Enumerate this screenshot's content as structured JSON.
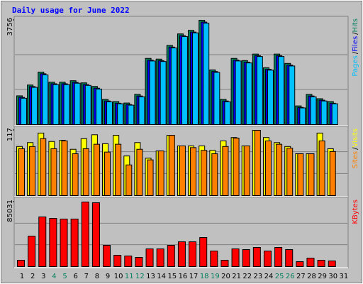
{
  "title": "Daily usage for June 2022",
  "legend_separator": "/",
  "x_axis": {
    "categories": [
      "1",
      "2",
      "3",
      "4",
      "5",
      "6",
      "7",
      "8",
      "9",
      "10",
      "11",
      "12",
      "13",
      "14",
      "15",
      "16",
      "17",
      "18",
      "19",
      "20",
      "21",
      "22",
      "23",
      "24",
      "25",
      "26",
      "27",
      "28",
      "29",
      "30",
      "31"
    ],
    "label_colors": [
      "#000000",
      "#000000",
      "#000000",
      "#00805c",
      "#00805c",
      "#000000",
      "#000000",
      "#000000",
      "#000000",
      "#000000",
      "#00805c",
      "#00805c",
      "#000000",
      "#000000",
      "#000000",
      "#000000",
      "#000000",
      "#00805c",
      "#00805c",
      "#000000",
      "#000000",
      "#000000",
      "#000000",
      "#000000",
      "#00805c",
      "#00805c",
      "#000000",
      "#000000",
      "#000000",
      "#000000",
      "#000000"
    ]
  },
  "chart_data": [
    {
      "type": "bar",
      "ylim": [
        0,
        3756
      ],
      "yticks": [
        3756
      ],
      "series": [
        {
          "name": "Hits",
          "color": "#00805c",
          "values": [
            1036,
            1425,
            1891,
            1528,
            1528,
            1580,
            1502,
            1373,
            907,
            829,
            777,
            1088,
            2383,
            2357,
            2849,
            3264,
            3393,
            3756,
            1969,
            907,
            2383,
            2305,
            2538,
            2046,
            2538,
            2202,
            673,
            1088,
            932,
            829,
            null
          ]
        },
        {
          "name": "Files",
          "color": "#0000ff",
          "values": [
            980,
            1370,
            1830,
            1470,
            1470,
            1520,
            1440,
            1310,
            850,
            770,
            720,
            1030,
            2320,
            2300,
            2790,
            3200,
            3330,
            3690,
            1910,
            850,
            2320,
            2250,
            2480,
            1990,
            2480,
            2140,
            620,
            1030,
            880,
            770,
            null
          ]
        },
        {
          "name": "Pages",
          "color": "#00c0ff",
          "values": [
            950,
            1340,
            1790,
            1440,
            1440,
            1490,
            1410,
            1280,
            820,
            750,
            700,
            1000,
            2290,
            2270,
            2760,
            3170,
            3300,
            3650,
            1880,
            820,
            2290,
            2220,
            2450,
            1960,
            2450,
            2110,
            600,
            1000,
            850,
            750,
            null
          ]
        }
      ]
    },
    {
      "type": "bar",
      "ylim": [
        0,
        117
      ],
      "yticks": [
        117
      ],
      "series": [
        {
          "name": "Visits",
          "color": "#ffff00",
          "values": [
            88,
            95,
            112,
            97,
            99,
            83,
            102,
            109,
            93,
            108,
            71,
            95,
            67,
            80,
            108,
            89,
            89,
            89,
            81,
            98,
            104,
            89,
            117,
            104,
            95,
            88,
            75,
            75,
            112,
            84,
            null
          ]
        },
        {
          "name": "Sites",
          "color": "#ff8000",
          "values": [
            84,
            88,
            102,
            84,
            98,
            75,
            84,
            92,
            78,
            92,
            55,
            83,
            64,
            80,
            108,
            89,
            86,
            81,
            75,
            88,
            103,
            89,
            117,
            98,
            92,
            85,
            75,
            75,
            98,
            79,
            null
          ]
        }
      ]
    },
    {
      "type": "bar",
      "ylim": [
        0,
        85031
      ],
      "yticks": [
        85031
      ],
      "series": [
        {
          "name": "KBytes",
          "color": "#ff0000",
          "values": [
            8406,
            40162,
            65380,
            63512,
            62578,
            62578,
            85031,
            84100,
            28020,
            14944,
            14010,
            12142,
            23350,
            23350,
            28020,
            32690,
            32690,
            38294,
            20548,
            8406,
            23350,
            22416,
            25218,
            20548,
            25218,
            22416,
            6538,
            11208,
            8406,
            7472,
            null
          ]
        }
      ]
    }
  ]
}
